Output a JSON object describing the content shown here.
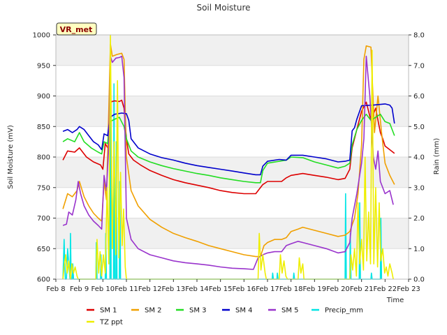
{
  "chart_data": {
    "type": "line",
    "title": "Soil Moisture",
    "xlabel": "Time",
    "ylabel": "Soil Moisture (mV)",
    "y2label": "Rain (mm)",
    "badge": "VR_met",
    "xlim": [
      8,
      23
    ],
    "ylim": [
      600,
      1000
    ],
    "y2lim": [
      0,
      8
    ],
    "x_ticks": [
      8,
      9,
      10,
      11,
      12,
      13,
      14,
      15,
      16,
      17,
      18,
      19,
      20,
      21,
      22,
      23
    ],
    "x_tick_labels": [
      "Feb 8",
      "Feb 9",
      "Feb 10",
      "Feb 11",
      "Feb 12",
      "Feb 13",
      "Feb 14",
      "Feb 15",
      "Feb 16",
      "Feb 17",
      "Feb 18",
      "Feb 19",
      "Feb 20",
      "Feb 21",
      "Feb 22",
      "Feb 23"
    ],
    "y_ticks": [
      600,
      650,
      700,
      750,
      800,
      850,
      900,
      950,
      1000
    ],
    "y2_ticks": [
      0.0,
      1.0,
      2.0,
      3.0,
      4.0,
      5.0,
      6.0,
      7.0,
      8.0
    ],
    "y2_tick_labels": [
      "0.0",
      "1.0",
      "2.0",
      "3.0",
      "4.0",
      "5.0",
      "6.0",
      "7.0",
      "8.0"
    ],
    "series": [
      {
        "name": "SM 1",
        "color": "#dd0000",
        "axis": "left",
        "x": [
          8.3,
          8.5,
          8.8,
          9.0,
          9.3,
          9.6,
          9.9,
          10.0,
          10.1,
          10.2,
          10.25,
          10.3,
          10.5,
          10.7,
          10.8,
          10.9,
          11.0,
          11.1,
          11.3,
          11.6,
          12.0,
          12.5,
          13.0,
          13.5,
          14.0,
          14.5,
          15.0,
          15.5,
          16.0,
          16.5,
          16.7,
          16.8,
          17.0,
          17.3,
          17.6,
          17.8,
          18.0,
          18.5,
          19.0,
          19.5,
          20.0,
          20.3,
          20.5,
          20.6,
          20.8,
          21.0,
          21.2,
          21.4,
          21.6,
          21.7,
          21.8,
          21.9,
          22.0,
          22.2,
          22.4
        ],
        "y": [
          795,
          810,
          808,
          815,
          800,
          792,
          787,
          780,
          822,
          815,
          828,
          890,
          892,
          891,
          893,
          880,
          830,
          805,
          795,
          787,
          778,
          770,
          763,
          758,
          754,
          750,
          745,
          742,
          740,
          740,
          750,
          755,
          760,
          760,
          760,
          766,
          770,
          773,
          770,
          767,
          763,
          765,
          780,
          815,
          845,
          875,
          890,
          860,
          880,
          860,
          840,
          830,
          818,
          812,
          806
        ]
      },
      {
        "name": "SM 2",
        "color": "#f0a000",
        "axis": "left",
        "x": [
          8.3,
          8.5,
          8.7,
          8.9,
          9.0,
          9.2,
          9.4,
          9.6,
          9.8,
          9.95,
          10.05,
          10.15,
          10.25,
          10.32,
          10.4,
          10.6,
          10.8,
          10.9,
          11.0,
          11.2,
          11.5,
          12.0,
          12.5,
          13.0,
          13.5,
          14.0,
          14.5,
          15.0,
          15.5,
          16.0,
          16.5,
          16.7,
          16.85,
          17.0,
          17.3,
          17.6,
          17.8,
          18.0,
          18.3,
          18.5,
          19.0,
          19.5,
          20.0,
          20.3,
          20.5,
          20.7,
          20.85,
          21.0,
          21.1,
          21.2,
          21.4,
          21.55,
          21.7,
          21.85,
          22.0,
          22.2,
          22.4
        ],
        "y": [
          715,
          740,
          735,
          745,
          760,
          735,
          720,
          708,
          700,
          695,
          760,
          730,
          880,
          985,
          965,
          968,
          970,
          960,
          800,
          745,
          720,
          698,
          685,
          675,
          668,
          662,
          655,
          650,
          645,
          640,
          637,
          637,
          655,
          660,
          665,
          665,
          668,
          678,
          682,
          685,
          680,
          675,
          670,
          672,
          678,
          700,
          740,
          820,
          960,
          982,
          980,
          840,
          900,
          840,
          790,
          770,
          755
        ]
      },
      {
        "name": "SM 3",
        "color": "#22dd22",
        "axis": "left",
        "x": [
          8.3,
          8.5,
          8.8,
          9.0,
          9.2,
          9.5,
          9.8,
          9.95,
          10.05,
          10.2,
          10.3,
          10.5,
          10.7,
          10.9,
          11.0,
          11.2,
          11.5,
          12.0,
          12.5,
          13.0,
          13.5,
          14.0,
          14.5,
          15.0,
          15.5,
          16.0,
          16.5,
          16.7,
          16.8,
          17.0,
          17.5,
          17.8,
          18.0,
          18.5,
          19.0,
          19.5,
          20.0,
          20.3,
          20.5,
          20.6,
          20.8,
          21.0,
          21.2,
          21.4,
          21.6,
          21.8,
          22.0,
          22.2,
          22.4
        ],
        "y": [
          825,
          830,
          825,
          840,
          825,
          815,
          808,
          805,
          825,
          822,
          858,
          862,
          865,
          850,
          830,
          810,
          800,
          792,
          786,
          781,
          777,
          773,
          770,
          766,
          763,
          760,
          758,
          758,
          778,
          790,
          793,
          795,
          800,
          799,
          792,
          787,
          782,
          785,
          790,
          820,
          845,
          860,
          870,
          860,
          865,
          870,
          858,
          855,
          835
        ]
      },
      {
        "name": "SM 4",
        "color": "#0000cc",
        "axis": "left",
        "x": [
          8.3,
          8.5,
          8.7,
          8.9,
          9.0,
          9.2,
          9.4,
          9.6,
          9.8,
          9.95,
          10.05,
          10.2,
          10.3,
          10.5,
          10.8,
          11.0,
          11.1,
          11.2,
          11.5,
          12.0,
          12.5,
          13.0,
          13.5,
          14.0,
          14.5,
          15.0,
          15.5,
          16.0,
          16.5,
          16.7,
          16.8,
          17.0,
          17.5,
          17.8,
          18.0,
          18.5,
          19.0,
          19.5,
          20.0,
          20.3,
          20.5,
          20.6,
          20.7,
          20.8,
          21.0,
          21.5,
          22.0,
          22.2,
          22.3,
          22.4
        ],
        "y": [
          842,
          845,
          840,
          845,
          850,
          845,
          835,
          825,
          820,
          812,
          838,
          835,
          865,
          870,
          872,
          871,
          860,
          830,
          815,
          805,
          799,
          795,
          790,
          786,
          783,
          780,
          777,
          774,
          771,
          771,
          785,
          793,
          796,
          795,
          803,
          803,
          800,
          797,
          792,
          793,
          795,
          843,
          848,
          862,
          884,
          885,
          887,
          885,
          880,
          855
        ]
      },
      {
        "name": "SM 5",
        "color": "#9933cc",
        "axis": "left",
        "x": [
          8.3,
          8.45,
          8.55,
          8.7,
          8.85,
          8.95,
          9.05,
          9.2,
          9.4,
          9.6,
          9.8,
          9.95,
          10.05,
          10.15,
          10.25,
          10.32,
          10.4,
          10.55,
          10.7,
          10.8,
          10.9,
          11.0,
          11.2,
          11.5,
          12.0,
          12.5,
          13.0,
          13.5,
          14.0,
          14.5,
          15.0,
          15.5,
          16.0,
          16.4,
          16.6,
          16.8,
          17.0,
          17.3,
          17.6,
          17.8,
          18.0,
          18.3,
          18.5,
          19.0,
          19.5,
          20.0,
          20.3,
          20.5,
          20.6,
          20.8,
          21.0,
          21.1,
          21.2,
          21.35,
          21.5,
          21.6,
          21.7,
          21.8,
          22.0,
          22.2,
          22.35
        ],
        "y": [
          688,
          690,
          710,
          705,
          730,
          760,
          740,
          720,
          705,
          695,
          688,
          682,
          770,
          745,
          820,
          965,
          955,
          962,
          963,
          965,
          930,
          700,
          665,
          650,
          640,
          635,
          630,
          627,
          625,
          623,
          620,
          618,
          617,
          616,
          635,
          640,
          643,
          645,
          645,
          655,
          658,
          662,
          660,
          655,
          650,
          643,
          645,
          660,
          700,
          740,
          790,
          830,
          965,
          900,
          800,
          780,
          810,
          760,
          740,
          745,
          722
        ]
      },
      {
        "name": "Precip_mm",
        "color": "#00e5e5",
        "axis": "right",
        "x": [
          8.3,
          8.35,
          8.4,
          8.45,
          8.5,
          8.6,
          8.62,
          8.65,
          8.7,
          8.72,
          8.75,
          8.8,
          9.7,
          9.72,
          9.75,
          9.9,
          9.92,
          9.95,
          10.1,
          10.12,
          10.15,
          10.3,
          10.32,
          10.35,
          10.45,
          10.47,
          10.5,
          10.55,
          10.57,
          10.6,
          10.7,
          10.72,
          10.75,
          17.2,
          17.22,
          17.25,
          17.4,
          17.42,
          17.45,
          18.1,
          18.12,
          18.15,
          20.3,
          20.32,
          20.35,
          20.5,
          20.52,
          20.55,
          20.9,
          20.92,
          20.95,
          21.4,
          21.42,
          21.45,
          21.8,
          21.82,
          21.85
        ],
        "y": [
          0,
          1.3,
          0,
          0,
          1.0,
          0,
          1.5,
          0,
          0,
          0.5,
          0,
          0,
          0,
          1.2,
          0,
          0,
          0.8,
          0,
          0,
          1.5,
          0,
          0,
          6.3,
          0,
          0,
          6.4,
          0,
          0,
          4.5,
          0,
          0,
          3.2,
          0,
          0,
          0.2,
          0,
          0,
          0.2,
          0,
          0,
          0.2,
          0,
          0,
          2.8,
          0,
          0,
          1.5,
          0,
          0,
          2.5,
          0,
          0,
          0.2,
          0,
          0,
          2.0,
          0
        ]
      },
      {
        "name": "TZ ppt",
        "color": "#eeee00",
        "axis": "right",
        "x": [
          8.3,
          8.35,
          8.42,
          8.48,
          8.55,
          8.62,
          8.68,
          8.75,
          8.82,
          8.9,
          8.95,
          9.7,
          9.75,
          9.82,
          9.88,
          9.95,
          10.02,
          10.1,
          10.18,
          10.25,
          10.32,
          10.4,
          10.48,
          10.55,
          10.62,
          10.68,
          10.75,
          10.82,
          10.88,
          10.95,
          11.0,
          16.6,
          16.65,
          16.72,
          16.8,
          16.9,
          16.95,
          17.5,
          17.55,
          17.62,
          17.7,
          17.78,
          17.85,
          18.3,
          18.35,
          18.42,
          18.5,
          18.55,
          20.5,
          20.55,
          20.62,
          20.7,
          20.78,
          20.85,
          20.92,
          21.0,
          21.08,
          21.15,
          21.22,
          21.3,
          21.38,
          21.45,
          21.52,
          21.6,
          21.68,
          21.75,
          21.82,
          21.9,
          21.98,
          22.05,
          22.12,
          22.2,
          22.3,
          22.35
        ],
        "y": [
          0,
          0.4,
          0.8,
          0.2,
          0.6,
          0,
          0.5,
          0.2,
          0.4,
          0.1,
          0,
          0,
          1.3,
          0.2,
          0.9,
          0.1,
          0.8,
          0.2,
          3.0,
          0.5,
          8.0,
          1.0,
          4.5,
          0.8,
          6.5,
          0.7,
          3.5,
          1.1,
          2.3,
          0.4,
          0,
          0,
          1.5,
          0.3,
          0.8,
          0.2,
          0,
          0,
          0.8,
          0.2,
          0.6,
          0.1,
          0,
          0,
          0.7,
          0.2,
          0.5,
          0,
          0,
          0.8,
          0.3,
          1.0,
          0.1,
          2.5,
          0.5,
          1.3,
          0.3,
          4.0,
          0.6,
          2.2,
          0.5,
          7.5,
          0.5,
          3.0,
          0.4,
          2.5,
          0.6,
          1.0,
          0.2,
          0.4,
          0.1,
          0.5,
          0.2,
          0
        ]
      }
    ],
    "legend": [
      {
        "name": "SM 1",
        "color": "#dd0000"
      },
      {
        "name": "SM 2",
        "color": "#f0a000"
      },
      {
        "name": "SM 3",
        "color": "#22dd22"
      },
      {
        "name": "SM 4",
        "color": "#0000cc"
      },
      {
        "name": "SM 5",
        "color": "#9933cc"
      },
      {
        "name": "Precip_mm",
        "color": "#00e5e5"
      },
      {
        "name": "TZ ppt",
        "color": "#eeee00"
      }
    ],
    "legend_position": "bottom"
  }
}
